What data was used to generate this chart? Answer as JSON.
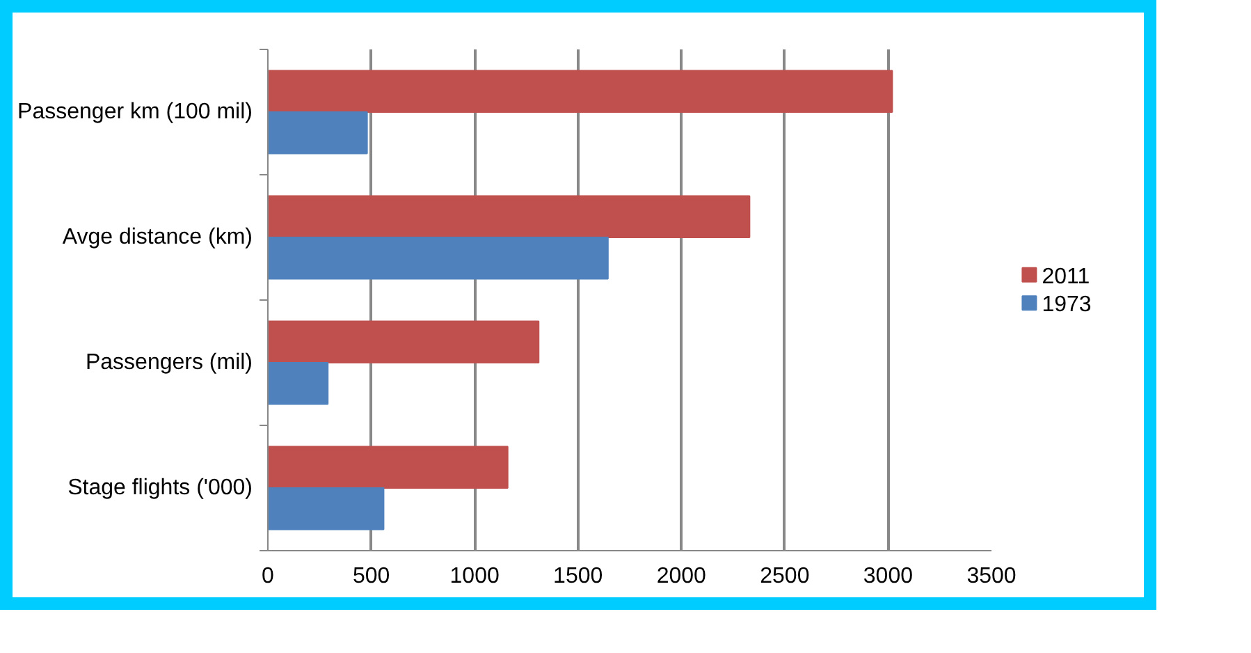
{
  "chart_data": {
    "type": "bar",
    "orientation": "horizontal",
    "categories": [
      "Passenger km (100 mil)",
      "Avge distance (km)",
      "Passengers (mil)",
      "Stage flights ('000)"
    ],
    "series": [
      {
        "name": "2011",
        "color": "#c0504d",
        "values": [
          3020,
          2330,
          1310,
          1160
        ]
      },
      {
        "name": "1973",
        "color": "#4f81bd",
        "values": [
          480,
          1645,
          290,
          560
        ]
      }
    ],
    "xlim": [
      0,
      3500
    ],
    "xticks": [
      0,
      500,
      1000,
      1500,
      2000,
      2500,
      3000,
      3500
    ],
    "grid": "x",
    "legend": "right"
  }
}
